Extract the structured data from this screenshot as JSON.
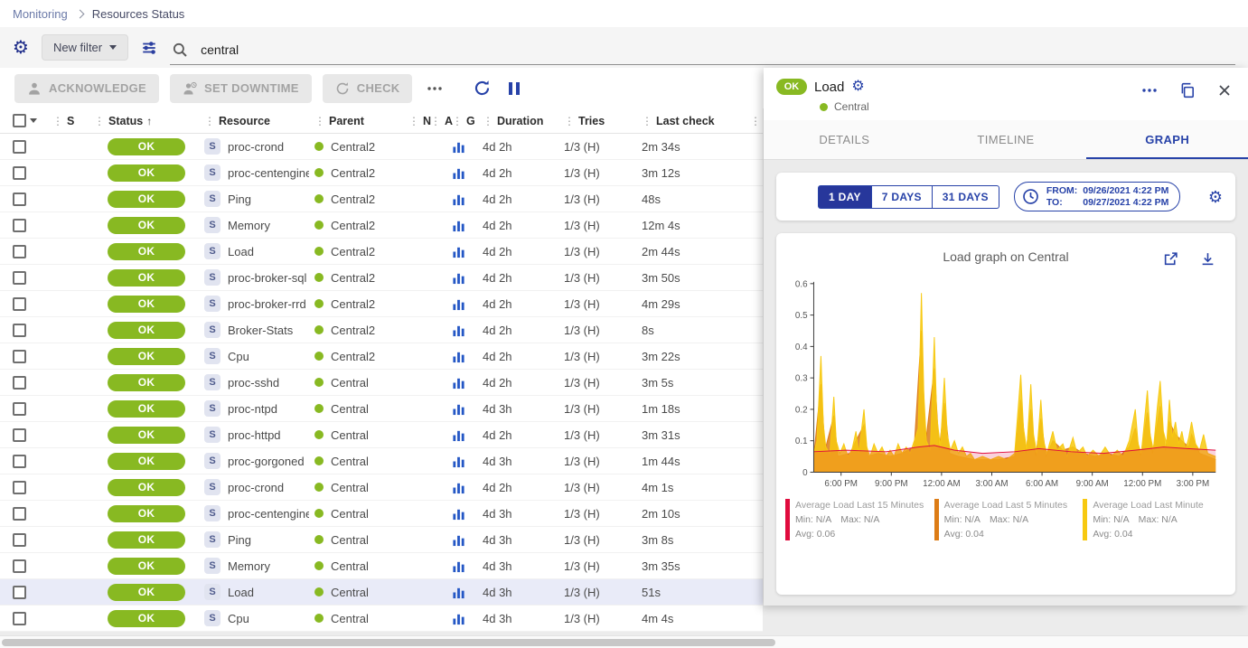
{
  "breadcrumb": {
    "items": [
      "Monitoring",
      "Resources Status"
    ]
  },
  "filter": {
    "new_filter_label": "New filter",
    "search_value": "central"
  },
  "toolbar": {
    "acknowledge_label": "ACKNOWLEDGE",
    "set_downtime_label": "SET DOWNTIME",
    "check_label": "CHECK"
  },
  "table": {
    "headers": {
      "severity": "S",
      "status": "Status",
      "resource": "Resource",
      "parent": "Parent",
      "n": "N",
      "a": "A",
      "g": "G",
      "duration": "Duration",
      "tries": "Tries",
      "last_check": "Last check"
    },
    "rows": [
      {
        "status": "OK",
        "resource": "proc-crond",
        "parent": "Central2",
        "duration": "4d 2h",
        "tries": "1/3 (H)",
        "last_check": "2m 34s",
        "selected": false
      },
      {
        "status": "OK",
        "resource": "proc-centengine",
        "parent": "Central2",
        "duration": "4d 2h",
        "tries": "1/3 (H)",
        "last_check": "3m 12s",
        "selected": false
      },
      {
        "status": "OK",
        "resource": "Ping",
        "parent": "Central2",
        "duration": "4d 2h",
        "tries": "1/3 (H)",
        "last_check": "48s",
        "selected": false
      },
      {
        "status": "OK",
        "resource": "Memory",
        "parent": "Central2",
        "duration": "4d 2h",
        "tries": "1/3 (H)",
        "last_check": "12m 4s",
        "selected": false
      },
      {
        "status": "OK",
        "resource": "Load",
        "parent": "Central2",
        "duration": "4d 2h",
        "tries": "1/3 (H)",
        "last_check": "2m 44s",
        "selected": false
      },
      {
        "status": "OK",
        "resource": "proc-broker-sql",
        "parent": "Central2",
        "duration": "4d 2h",
        "tries": "1/3 (H)",
        "last_check": "3m 50s",
        "selected": false
      },
      {
        "status": "OK",
        "resource": "proc-broker-rrd",
        "parent": "Central2",
        "duration": "4d 2h",
        "tries": "1/3 (H)",
        "last_check": "4m 29s",
        "selected": false
      },
      {
        "status": "OK",
        "resource": "Broker-Stats",
        "parent": "Central2",
        "duration": "4d 2h",
        "tries": "1/3 (H)",
        "last_check": "8s",
        "selected": false
      },
      {
        "status": "OK",
        "resource": "Cpu",
        "parent": "Central2",
        "duration": "4d 2h",
        "tries": "1/3 (H)",
        "last_check": "3m 22s",
        "selected": false
      },
      {
        "status": "OK",
        "resource": "proc-sshd",
        "parent": "Central",
        "duration": "4d 2h",
        "tries": "1/3 (H)",
        "last_check": "3m 5s",
        "selected": false
      },
      {
        "status": "OK",
        "resource": "proc-ntpd",
        "parent": "Central",
        "duration": "4d 3h",
        "tries": "1/3 (H)",
        "last_check": "1m 18s",
        "selected": false
      },
      {
        "status": "OK",
        "resource": "proc-httpd",
        "parent": "Central",
        "duration": "4d 2h",
        "tries": "1/3 (H)",
        "last_check": "3m 31s",
        "selected": false
      },
      {
        "status": "OK",
        "resource": "proc-gorgoned",
        "parent": "Central",
        "duration": "4d 3h",
        "tries": "1/3 (H)",
        "last_check": "1m 44s",
        "selected": false
      },
      {
        "status": "OK",
        "resource": "proc-crond",
        "parent": "Central",
        "duration": "4d 2h",
        "tries": "1/3 (H)",
        "last_check": "4m 1s",
        "selected": false
      },
      {
        "status": "OK",
        "resource": "proc-centengine",
        "parent": "Central",
        "duration": "4d 3h",
        "tries": "1/3 (H)",
        "last_check": "2m 10s",
        "selected": false
      },
      {
        "status": "OK",
        "resource": "Ping",
        "parent": "Central",
        "duration": "4d 3h",
        "tries": "1/3 (H)",
        "last_check": "3m 8s",
        "selected": false
      },
      {
        "status": "OK",
        "resource": "Memory",
        "parent": "Central",
        "duration": "4d 3h",
        "tries": "1/3 (H)",
        "last_check": "3m 35s",
        "selected": false
      },
      {
        "status": "OK",
        "resource": "Load",
        "parent": "Central",
        "duration": "4d 3h",
        "tries": "1/3 (H)",
        "last_check": "51s",
        "selected": true
      },
      {
        "status": "OK",
        "resource": "Cpu",
        "parent": "Central",
        "duration": "4d 3h",
        "tries": "1/3 (H)",
        "last_check": "4m 4s",
        "selected": false
      }
    ]
  },
  "panel": {
    "status": "OK",
    "title": "Load",
    "host": "Central",
    "tabs": [
      "DETAILS",
      "TIMELINE",
      "GRAPH"
    ],
    "active_tab": "GRAPH",
    "period": {
      "options": [
        "1 DAY",
        "7 DAYS",
        "31 DAYS"
      ],
      "selected": "1 DAY",
      "from_label": "FROM:",
      "from_value": "09/26/2021 4:22 PM",
      "to_label": "TO:",
      "to_value": "09/27/2021 4:22 PM"
    },
    "legend_labels": {
      "min": "Min:",
      "max": "Max:",
      "avg": "Avg:"
    },
    "chart_data": {
      "type": "area",
      "title": "Load graph on Central",
      "ylim": [
        0,
        0.6
      ],
      "y_ticks": [
        0,
        0.1,
        0.2,
        0.3,
        0.4,
        0.5,
        0.6
      ],
      "x_ticks": [
        {
          "pos": 0.068,
          "label": "6:00 PM"
        },
        {
          "pos": 0.193,
          "label": "9:00 PM"
        },
        {
          "pos": 0.318,
          "label": "12:00 AM"
        },
        {
          "pos": 0.443,
          "label": "3:00 AM"
        },
        {
          "pos": 0.568,
          "label": "6:00 AM"
        },
        {
          "pos": 0.693,
          "label": "9:00 AM"
        },
        {
          "pos": 0.818,
          "label": "12:00 PM"
        },
        {
          "pos": 0.943,
          "label": "3:00 PM"
        }
      ],
      "series": [
        {
          "name": "Average Load Last 15 Minutes",
          "color": "#e00b3d",
          "fill_opacity": 0.18,
          "min": "N/A",
          "max": "N/A",
          "avg": "0.06",
          "points": [
            [
              0,
              0.065
            ],
            [
              0.08,
              0.07
            ],
            [
              0.18,
              0.065
            ],
            [
              0.26,
              0.08
            ],
            [
              0.3,
              0.085
            ],
            [
              0.35,
              0.07
            ],
            [
              0.42,
              0.06
            ],
            [
              0.5,
              0.065
            ],
            [
              0.56,
              0.075
            ],
            [
              0.64,
              0.065
            ],
            [
              0.72,
              0.06
            ],
            [
              0.8,
              0.07
            ],
            [
              0.87,
              0.08
            ],
            [
              0.93,
              0.075
            ],
            [
              1,
              0.07
            ]
          ]
        },
        {
          "name": "Average Load Last 5 Minutes",
          "color": "#dd7c16",
          "fill_opacity": 0.85,
          "min": "N/A",
          "max": "N/A",
          "avg": "0.04",
          "points": [
            [
              0,
              0.05
            ],
            [
              0.018,
              0.28
            ],
            [
              0.028,
              0.07
            ],
            [
              0.05,
              0.18
            ],
            [
              0.06,
              0.05
            ],
            [
              0.09,
              0.06
            ],
            [
              0.105,
              0.1
            ],
            [
              0.125,
              0.15
            ],
            [
              0.135,
              0.05
            ],
            [
              0.16,
              0.06
            ],
            [
              0.19,
              0.05
            ],
            [
              0.22,
              0.06
            ],
            [
              0.25,
              0.08
            ],
            [
              0.268,
              0.45
            ],
            [
              0.278,
              0.09
            ],
            [
              0.3,
              0.33
            ],
            [
              0.312,
              0.07
            ],
            [
              0.325,
              0.22
            ],
            [
              0.338,
              0.06
            ],
            [
              0.36,
              0.05
            ],
            [
              0.4,
              0.04
            ],
            [
              0.46,
              0.04
            ],
            [
              0.5,
              0.05
            ],
            [
              0.515,
              0.23
            ],
            [
              0.528,
              0.06
            ],
            [
              0.54,
              0.2
            ],
            [
              0.552,
              0.05
            ],
            [
              0.565,
              0.17
            ],
            [
              0.578,
              0.05
            ],
            [
              0.595,
              0.1
            ],
            [
              0.62,
              0.07
            ],
            [
              0.645,
              0.08
            ],
            [
              0.67,
              0.06
            ],
            [
              0.7,
              0.05
            ],
            [
              0.73,
              0.06
            ],
            [
              0.76,
              0.05
            ],
            [
              0.785,
              0.08
            ],
            [
              0.8,
              0.14
            ],
            [
              0.813,
              0.05
            ],
            [
              0.83,
              0.19
            ],
            [
              0.843,
              0.06
            ],
            [
              0.862,
              0.21
            ],
            [
              0.875,
              0.07
            ],
            [
              0.885,
              0.16
            ],
            [
              0.9,
              0.12
            ],
            [
              0.916,
              0.1
            ],
            [
              0.933,
              0.08
            ],
            [
              0.94,
              0.12
            ],
            [
              0.96,
              0.06
            ],
            [
              0.98,
              0.05
            ],
            [
              1,
              0.04
            ]
          ]
        },
        {
          "name": "Average Load Last Minute",
          "color": "#f7c911",
          "fill_opacity": 0.85,
          "min": "N/A",
          "max": "N/A",
          "avg": "0.04",
          "points": [
            [
              0,
              0.06
            ],
            [
              0.008,
              0.1
            ],
            [
              0.018,
              0.37
            ],
            [
              0.024,
              0.15
            ],
            [
              0.03,
              0.08
            ],
            [
              0.04,
              0.06
            ],
            [
              0.05,
              0.24
            ],
            [
              0.056,
              0.1
            ],
            [
              0.065,
              0.06
            ],
            [
              0.075,
              0.09
            ],
            [
              0.085,
              0.05
            ],
            [
              0.095,
              0.07
            ],
            [
              0.105,
              0.13
            ],
            [
              0.112,
              0.06
            ],
            [
              0.125,
              0.2
            ],
            [
              0.132,
              0.08
            ],
            [
              0.14,
              0.05
            ],
            [
              0.15,
              0.09
            ],
            [
              0.16,
              0.06
            ],
            [
              0.17,
              0.08
            ],
            [
              0.18,
              0.05
            ],
            [
              0.19,
              0.07
            ],
            [
              0.2,
              0.05
            ],
            [
              0.21,
              0.09
            ],
            [
              0.22,
              0.06
            ],
            [
              0.23,
              0.08
            ],
            [
              0.24,
              0.06
            ],
            [
              0.25,
              0.1
            ],
            [
              0.26,
              0.14
            ],
            [
              0.268,
              0.57
            ],
            [
              0.274,
              0.25
            ],
            [
              0.28,
              0.1
            ],
            [
              0.29,
              0.07
            ],
            [
              0.3,
              0.43
            ],
            [
              0.306,
              0.18
            ],
            [
              0.315,
              0.08
            ],
            [
              0.325,
              0.3
            ],
            [
              0.332,
              0.12
            ],
            [
              0.34,
              0.07
            ],
            [
              0.35,
              0.1
            ],
            [
              0.36,
              0.06
            ],
            [
              0.37,
              0.08
            ],
            [
              0.38,
              0.05
            ],
            [
              0.39,
              0.06
            ],
            [
              0.4,
              0.04
            ],
            [
              0.42,
              0.05
            ],
            [
              0.44,
              0.04
            ],
            [
              0.46,
              0.05
            ],
            [
              0.48,
              0.04
            ],
            [
              0.5,
              0.06
            ],
            [
              0.515,
              0.31
            ],
            [
              0.522,
              0.14
            ],
            [
              0.53,
              0.07
            ],
            [
              0.54,
              0.28
            ],
            [
              0.547,
              0.12
            ],
            [
              0.555,
              0.06
            ],
            [
              0.565,
              0.23
            ],
            [
              0.572,
              0.1
            ],
            [
              0.58,
              0.06
            ],
            [
              0.595,
              0.13
            ],
            [
              0.605,
              0.07
            ],
            [
              0.62,
              0.09
            ],
            [
              0.63,
              0.05
            ],
            [
              0.645,
              0.11
            ],
            [
              0.655,
              0.06
            ],
            [
              0.67,
              0.08
            ],
            [
              0.68,
              0.05
            ],
            [
              0.695,
              0.07
            ],
            [
              0.71,
              0.05
            ],
            [
              0.725,
              0.08
            ],
            [
              0.74,
              0.05
            ],
            [
              0.755,
              0.07
            ],
            [
              0.77,
              0.05
            ],
            [
              0.785,
              0.1
            ],
            [
              0.8,
              0.2
            ],
            [
              0.807,
              0.09
            ],
            [
              0.815,
              0.06
            ],
            [
              0.83,
              0.26
            ],
            [
              0.837,
              0.12
            ],
            [
              0.845,
              0.07
            ],
            [
              0.855,
              0.21
            ],
            [
              0.862,
              0.29
            ],
            [
              0.87,
              0.13
            ],
            [
              0.878,
              0.09
            ],
            [
              0.885,
              0.23
            ],
            [
              0.892,
              0.11
            ],
            [
              0.9,
              0.16
            ],
            [
              0.908,
              0.09
            ],
            [
              0.916,
              0.13
            ],
            [
              0.925,
              0.07
            ],
            [
              0.933,
              0.11
            ],
            [
              0.94,
              0.16
            ],
            [
              0.95,
              0.09
            ],
            [
              0.96,
              0.07
            ],
            [
              0.97,
              0.12
            ],
            [
              0.98,
              0.06
            ],
            [
              1,
              0.05
            ]
          ]
        }
      ],
      "draw_order": [
        1,
        2,
        0
      ]
    }
  },
  "colors": {
    "ok_green": "#88b922",
    "primary_blue": "#2742a8",
    "selected_row": "#e9ebf8"
  }
}
